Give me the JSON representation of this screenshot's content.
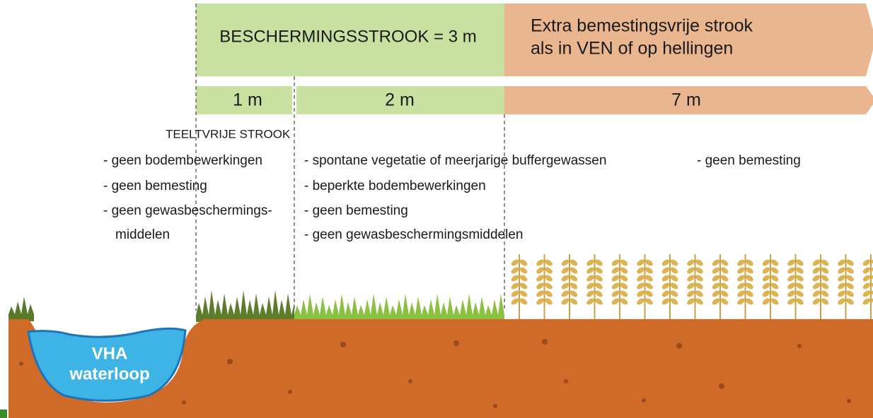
{
  "banners": {
    "protection": "BESCHERMINGSSTROOK = 3 m",
    "extra": [
      "Extra bemestingsvrije strook",
      "als in VEN of op hellingen"
    ]
  },
  "widths": [
    "1 m",
    "2 m",
    "7 m"
  ],
  "zones": [
    {
      "title": "TEELTVRIJE STROOK",
      "items": [
        "- geen bodembewerkingen",
        "- geen bemesting",
        "- geen gewasbeschermings-",
        "middelen"
      ]
    },
    {
      "items": [
        "- spontane vegetatie of meerjarige buffergewassen",
        "- beperkte bodembewerkingen",
        "- geen bemesting",
        "- geen gewasbeschermingsmiddelen"
      ]
    },
    {
      "items": [
        "- geen bemesting"
      ]
    }
  ],
  "water": [
    "VHA",
    "waterloop"
  ]
}
